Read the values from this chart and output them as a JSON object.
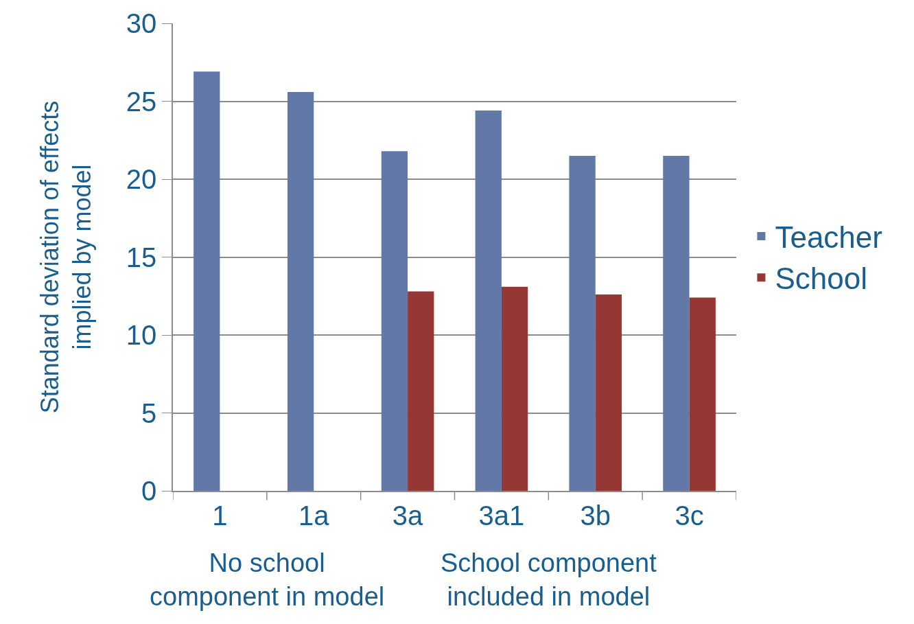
{
  "chart_data": {
    "type": "bar",
    "ylabel": "Standard deviation of effects\nimplied by model",
    "categories": [
      "1",
      "1a",
      "3a",
      "3a1",
      "3b",
      "3c"
    ],
    "series": [
      {
        "name": "Teacher",
        "color": "#6279a8",
        "values": [
          26.9,
          25.6,
          21.8,
          24.4,
          21.5,
          21.5
        ]
      },
      {
        "name": "School",
        "color": "#953735",
        "values": [
          null,
          null,
          12.8,
          13.1,
          12.6,
          12.4
        ]
      }
    ],
    "ylim": [
      0,
      30
    ],
    "yticks": [
      0,
      5,
      10,
      15,
      20,
      25,
      30
    ],
    "grid": "y",
    "legend": "right",
    "annotations": [
      "No school\ncomponent in model",
      "School component\nincluded in model"
    ]
  }
}
